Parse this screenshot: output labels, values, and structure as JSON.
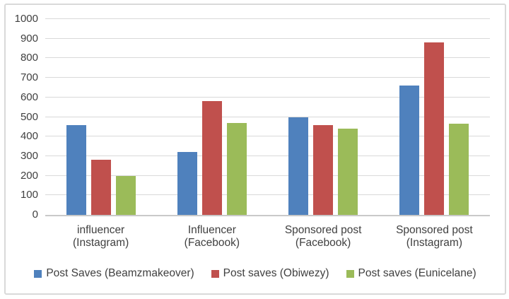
{
  "figure": {
    "background_color": "#FFFFFF",
    "border_color": "#D9D9D9",
    "gridline_color": "#D9D9D9",
    "axis_line_color": "#C9C9C9",
    "axis_text_color": "#404040"
  },
  "chart_data": {
    "type": "bar",
    "title": "",
    "xlabel": "",
    "ylabel": "",
    "ylim": [
      0,
      1000
    ],
    "yticks": [
      0,
      100,
      200,
      300,
      400,
      500,
      600,
      700,
      800,
      900,
      1000
    ],
    "grid": true,
    "legend_position": "bottom",
    "categories": [
      [
        "influencer",
        "(Instagram)"
      ],
      [
        "Influencer",
        "(Facebook)"
      ],
      [
        "Sponsored post",
        "(Facebook)"
      ],
      [
        "Sponsored post",
        "(Instagram)"
      ]
    ],
    "series": [
      {
        "name": "Post Saves (Beamzmakeover)",
        "color": "#4F81BD",
        "values": [
          460,
          320,
          500,
          660
        ]
      },
      {
        "name": "Post saves (Obiwezy)",
        "color": "#C0504D",
        "values": [
          280,
          580,
          460,
          880
        ]
      },
      {
        "name": "Post saves (Eunicelane)",
        "color": "#9BBB59",
        "values": [
          200,
          470,
          440,
          465
        ]
      }
    ]
  }
}
